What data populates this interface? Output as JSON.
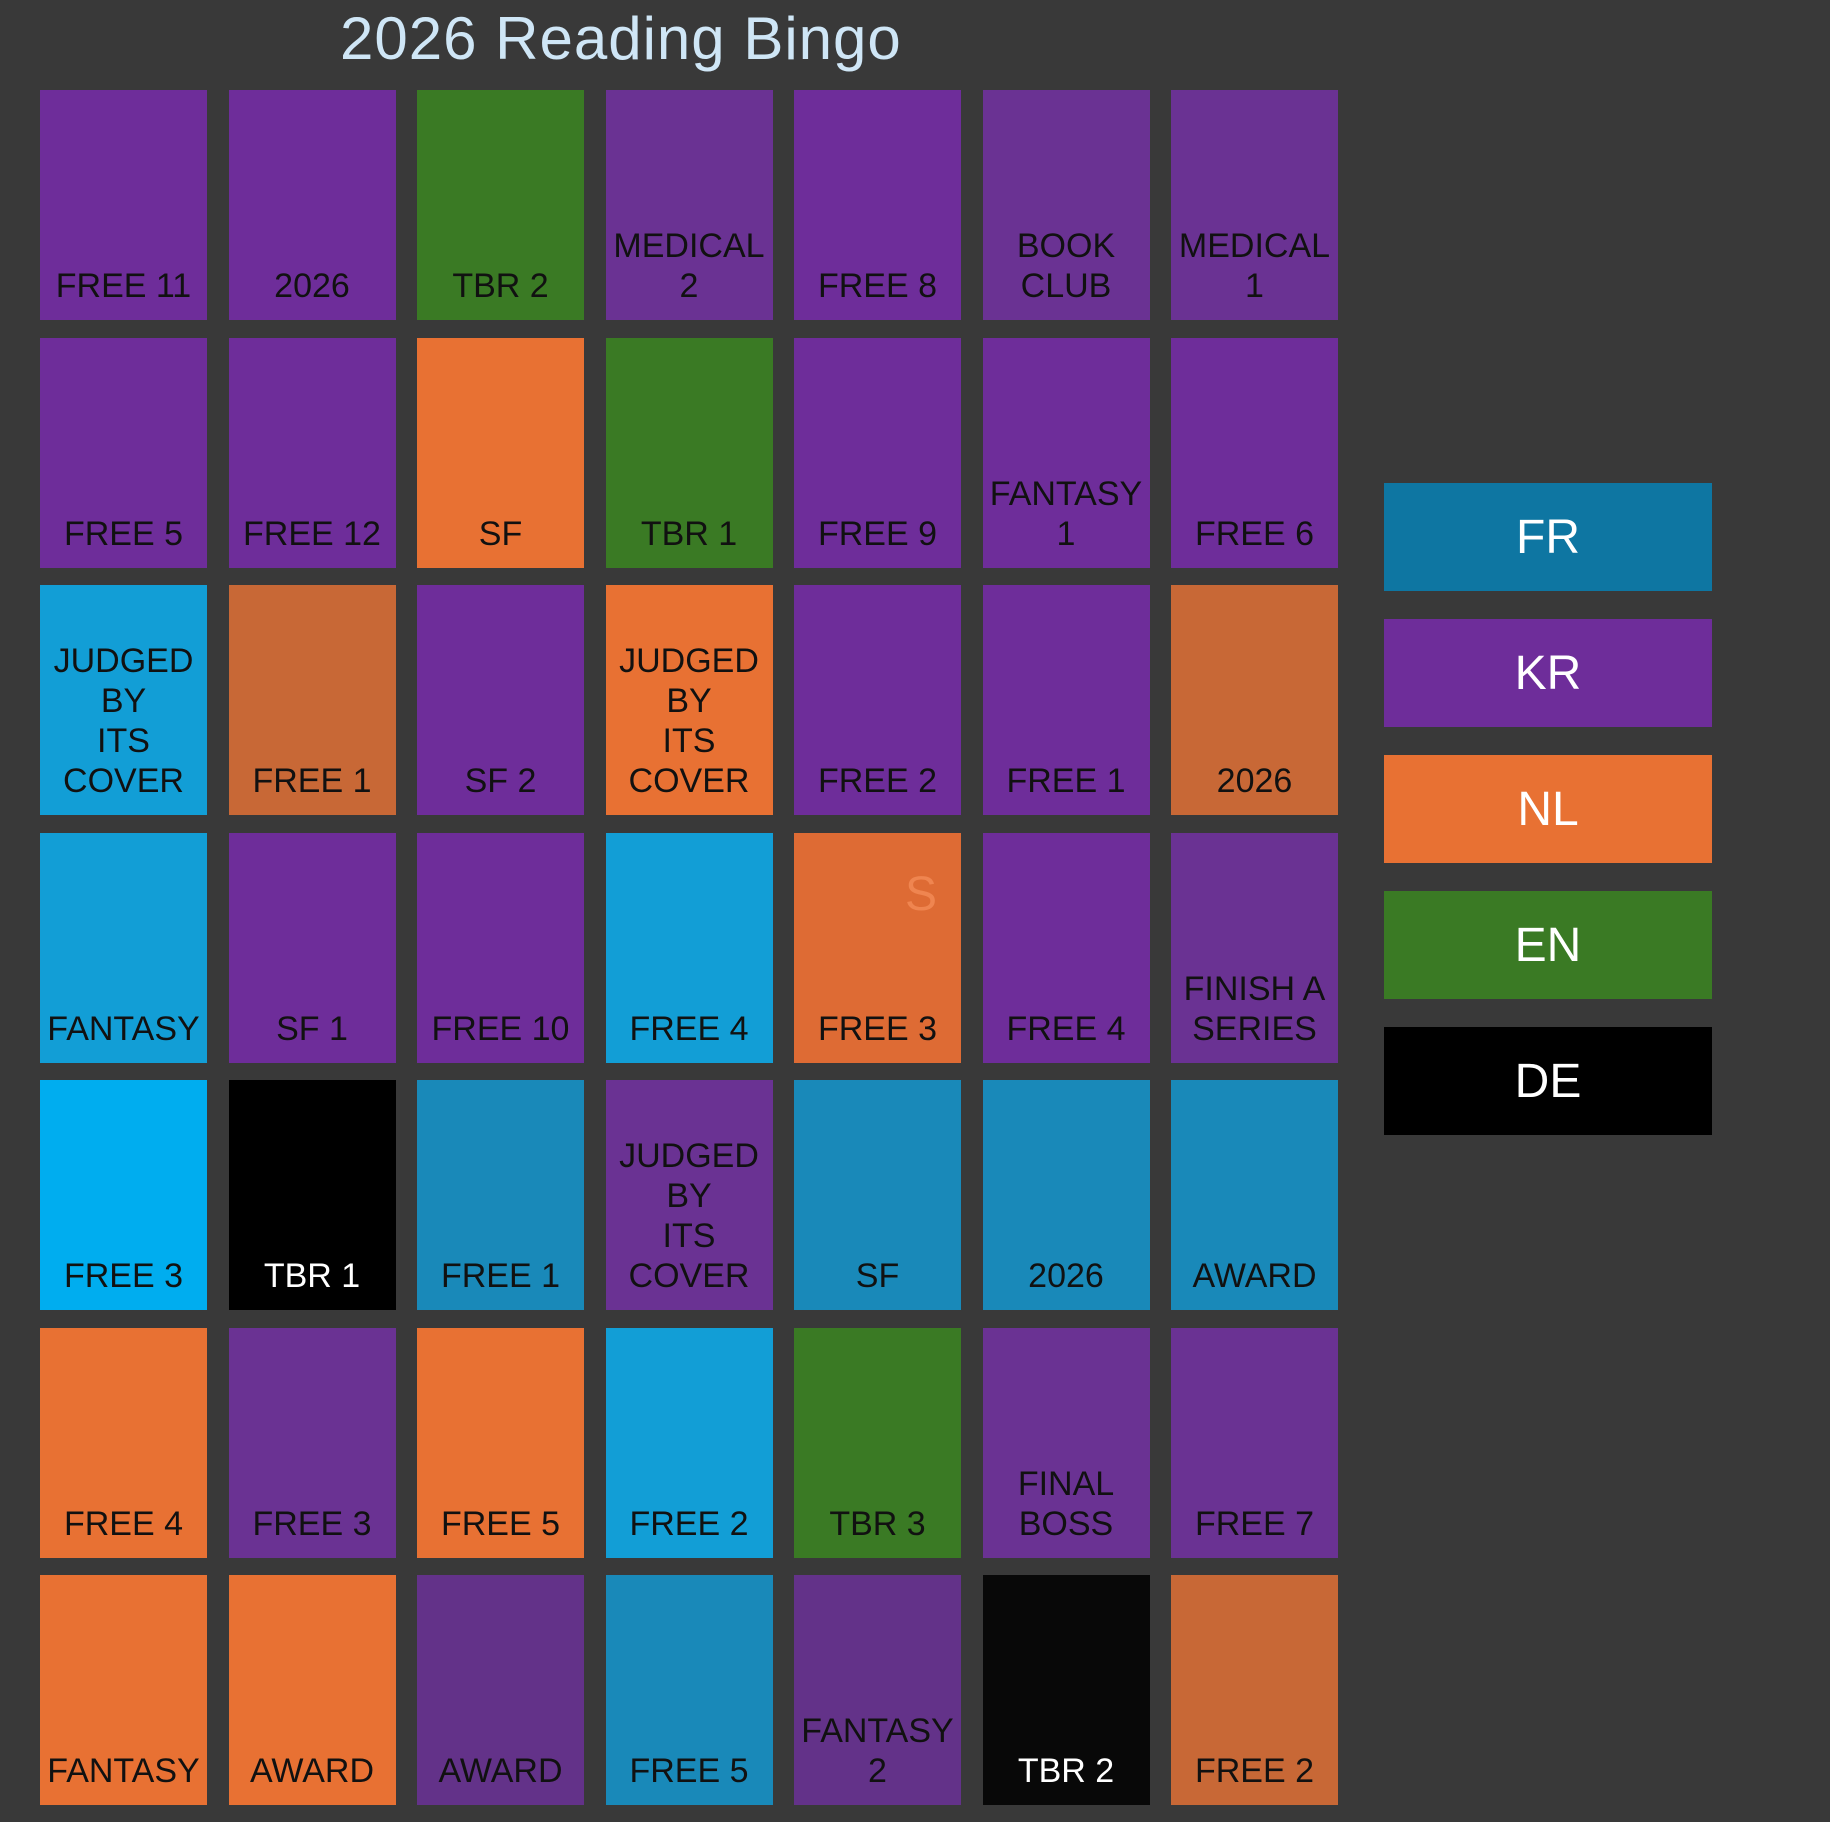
{
  "title": "2026 Reading Bingo",
  "colors": {
    "background": "#393939",
    "fr": "#0e76a2",
    "kr": "#6e2d9a",
    "nl": "#e87133",
    "en": "#3a7a24",
    "de": "#000000"
  },
  "legend": [
    {
      "code": "FR",
      "color": "#0e76a2"
    },
    {
      "code": "KR",
      "color": "#6e2d9a"
    },
    {
      "code": "NL",
      "color": "#e87133"
    },
    {
      "code": "EN",
      "color": "#3a7a24"
    },
    {
      "code": "DE",
      "color": "#000000"
    }
  ],
  "grid": [
    [
      {
        "label": "Free 11",
        "color": "#6e2d9a",
        "text_color": "#111111"
      },
      {
        "label": "2026",
        "color": "#6e2d9a",
        "text_color": "#111111"
      },
      {
        "label": "TBR 2",
        "color": "#3a7a24",
        "text_color": "#111111"
      },
      {
        "label": "Medical 2",
        "color": "#6a3293",
        "text_color": "#111111"
      },
      {
        "label": "Free 8",
        "color": "#6e2d9a",
        "text_color": "#111111"
      },
      {
        "label": "Book club",
        "color": "#6a3293",
        "text_color": "#111111"
      },
      {
        "label": "Medical 1",
        "color": "#6a3293",
        "text_color": "#111111"
      }
    ],
    [
      {
        "label": "Free 5",
        "color": "#6e2d9a",
        "text_color": "#111111"
      },
      {
        "label": "Free 12",
        "color": "#6e2d9a",
        "text_color": "#111111"
      },
      {
        "label": "SF",
        "color": "#e87133",
        "text_color": "#111111"
      },
      {
        "label": "TBR 1",
        "color": "#3a7a24",
        "text_color": "#111111"
      },
      {
        "label": "Free 9",
        "color": "#6e2d9a",
        "text_color": "#111111"
      },
      {
        "label": "Fantasy 1",
        "color": "#6e2d9a",
        "text_color": "#111111"
      },
      {
        "label": "Free 6",
        "color": "#6e2d9a",
        "text_color": "#111111"
      }
    ],
    [
      {
        "label": "Judged by\nits cover",
        "color": "#129ed6",
        "text_color": "#111111"
      },
      {
        "label": "Free 1",
        "color": "#c86836",
        "text_color": "#111111"
      },
      {
        "label": "SF 2",
        "color": "#6e2d9a",
        "text_color": "#111111"
      },
      {
        "label": "Judged by\nits cover",
        "color": "#e87133",
        "text_color": "#111111"
      },
      {
        "label": "Free 2",
        "color": "#6e2d9a",
        "text_color": "#111111"
      },
      {
        "label": "Free 1",
        "color": "#6e2d9a",
        "text_color": "#111111"
      },
      {
        "label": "2026",
        "color": "#c86836",
        "text_color": "#111111"
      }
    ],
    [
      {
        "label": "Fantasy",
        "color": "#129ed6",
        "text_color": "#111111"
      },
      {
        "label": "SF 1",
        "color": "#6e2d9a",
        "text_color": "#111111"
      },
      {
        "label": "Free 10",
        "color": "#6e2d9a",
        "text_color": "#111111"
      },
      {
        "label": "Free 4",
        "color": "#129ed6",
        "text_color": "#111111"
      },
      {
        "label": "Free 3",
        "color": "#de6b34",
        "text_color": "#111111",
        "mark": "S"
      },
      {
        "label": "Free 4",
        "color": "#6e2d9a",
        "text_color": "#111111"
      },
      {
        "label": "Finish a\nseries",
        "color": "#6a3293",
        "text_color": "#111111"
      }
    ],
    [
      {
        "label": "Free 3",
        "color": "#00adef",
        "text_color": "#111111"
      },
      {
        "label": "TBR 1",
        "color": "#000000",
        "text_color": "#ffffff"
      },
      {
        "label": "Free 1",
        "color": "#1989b9",
        "text_color": "#111111"
      },
      {
        "label": "Judged by\nits cover",
        "color": "#6a3293",
        "text_color": "#111111"
      },
      {
        "label": "SF",
        "color": "#1989b9",
        "text_color": "#111111"
      },
      {
        "label": "2026",
        "color": "#1989b9",
        "text_color": "#111111"
      },
      {
        "label": "Award",
        "color": "#1989b9",
        "text_color": "#111111"
      }
    ],
    [
      {
        "label": "Free 4",
        "color": "#e87133",
        "text_color": "#111111"
      },
      {
        "label": "Free 3",
        "color": "#6a3293",
        "text_color": "#111111"
      },
      {
        "label": "Free 5",
        "color": "#e87133",
        "text_color": "#111111"
      },
      {
        "label": "Free 2",
        "color": "#129ed6",
        "text_color": "#111111"
      },
      {
        "label": "TBR 3",
        "color": "#3a7a24",
        "text_color": "#111111"
      },
      {
        "label": "Final Boss",
        "color": "#6a3293",
        "text_color": "#111111"
      },
      {
        "label": "Free 7",
        "color": "#6a3293",
        "text_color": "#111111"
      }
    ],
    [
      {
        "label": "Fantasy",
        "color": "#e87133",
        "text_color": "#111111"
      },
      {
        "label": "Award",
        "color": "#e87133",
        "text_color": "#111111"
      },
      {
        "label": "Award",
        "color": "#633289",
        "text_color": "#111111"
      },
      {
        "label": "Free 5",
        "color": "#1989b9",
        "text_color": "#111111"
      },
      {
        "label": "Fantasy 2",
        "color": "#633289",
        "text_color": "#111111"
      },
      {
        "label": "TBR 2",
        "color": "#080808",
        "text_color": "#ffffff"
      },
      {
        "label": "Free 2",
        "color": "#c86836",
        "text_color": "#111111"
      }
    ]
  ]
}
